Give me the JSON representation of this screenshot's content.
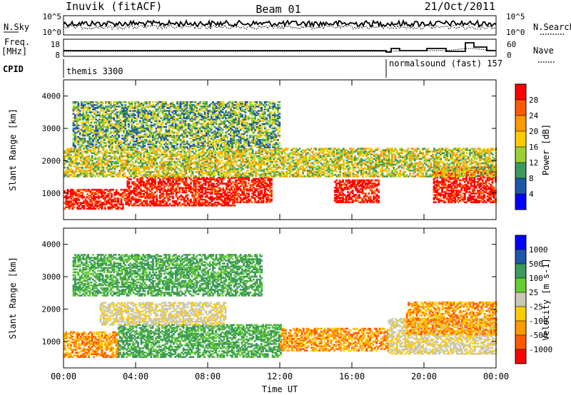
{
  "header": {
    "title": "Inuvik (fitACF)",
    "beam": "Beam 01",
    "date": "21/Oct/2011"
  },
  "top_panels": {
    "nsky_label": "N.Sky",
    "nsky_ticks": [
      "10^5",
      "10^0"
    ],
    "nsearch_label": "N.Search",
    "nsearch_ticks": [
      "10^5",
      "10^0"
    ],
    "freq_label": "Freq.",
    "freq_unit": "[MHz]",
    "freq_ticks": [
      "18",
      "8"
    ],
    "nave_label": "Nave",
    "nave_ticks": [
      "60",
      "0"
    ],
    "cpid_label": "CPID",
    "cpid_programs": [
      "themis 3300",
      "normalsound (fast) 157"
    ]
  },
  "chart_data": [
    {
      "type": "heatmap",
      "name": "power",
      "ylabel": "Slant Range [km]",
      "xlabel": "",
      "x_ticks": [
        "00:00",
        "04:00",
        "08:00",
        "12:00",
        "16:00",
        "20:00",
        "00:00"
      ],
      "y_ticks": [
        "1000",
        "2000",
        "3000",
        "4000"
      ],
      "ylim": [
        180,
        4500
      ],
      "colorbar": {
        "label": "Power [dB]",
        "ticks": [
          "28",
          "24",
          "20",
          "16",
          "12",
          "8",
          "4"
        ],
        "colors": [
          "#ff0000",
          "#ff5a00",
          "#ff9900",
          "#ffcc00",
          "#9ad033",
          "#3c9a5a",
          "#1f57a8",
          "#0000ff"
        ]
      },
      "bands": [
        {
          "from_hr": 0.0,
          "to_hr": 3.5,
          "low_km": 500,
          "high_km": 1100,
          "level": "high"
        },
        {
          "from_hr": 3.5,
          "to_hr": 9.5,
          "low_km": 600,
          "high_km": 1500,
          "level": "high"
        },
        {
          "from_hr": 9.5,
          "to_hr": 11.5,
          "low_km": 700,
          "high_km": 1500,
          "level": "high"
        },
        {
          "from_hr": 15.0,
          "to_hr": 17.5,
          "low_km": 700,
          "high_km": 1400,
          "level": "high"
        },
        {
          "from_hr": 20.5,
          "to_hr": 24.0,
          "low_km": 700,
          "high_km": 1800,
          "level": "high"
        },
        {
          "from_hr": 0.0,
          "to_hr": 24.0,
          "low_km": 1500,
          "high_km": 2400,
          "level": "mid"
        },
        {
          "from_hr": 0.5,
          "to_hr": 12.0,
          "low_km": 2400,
          "high_km": 3800,
          "level": "low"
        }
      ]
    },
    {
      "type": "heatmap",
      "name": "velocity",
      "ylabel": "Slant Range [km]",
      "xlabel": "Time UT",
      "x_ticks": [
        "00:00",
        "04:00",
        "08:00",
        "12:00",
        "16:00",
        "20:00",
        "00:00"
      ],
      "y_ticks": [
        "1000",
        "2000",
        "3000",
        "4000"
      ],
      "ylim": [
        180,
        4500
      ],
      "colorbar": {
        "label": "Velocity [m s-1]",
        "ticks": [
          "1000",
          "500",
          "100",
          "25",
          "-25",
          "-100",
          "-500",
          "-1000"
        ],
        "colors": [
          "#0000ff",
          "#1f57a8",
          "#3c9a5a",
          "#66cc33",
          "#c8c8b4",
          "#ffcc00",
          "#ff9900",
          "#ff5a00",
          "#ff0000"
        ]
      },
      "bands": [
        {
          "from_hr": 0.0,
          "to_hr": 3.0,
          "low_km": 500,
          "high_km": 1300,
          "level": "orange"
        },
        {
          "from_hr": 3.0,
          "to_hr": 12.0,
          "low_km": 500,
          "high_km": 1500,
          "level": "green"
        },
        {
          "from_hr": 2.0,
          "to_hr": 9.0,
          "low_km": 1500,
          "high_km": 2200,
          "level": "gray"
        },
        {
          "from_hr": 12.0,
          "to_hr": 18.0,
          "low_km": 700,
          "high_km": 1400,
          "level": "orange"
        },
        {
          "from_hr": 18.0,
          "to_hr": 24.0,
          "low_km": 600,
          "high_km": 1700,
          "level": "gray"
        },
        {
          "from_hr": 19.0,
          "to_hr": 24.0,
          "low_km": 1200,
          "high_km": 2200,
          "level": "orange"
        },
        {
          "from_hr": 0.5,
          "to_hr": 11.0,
          "low_km": 2400,
          "high_km": 3700,
          "level": "green"
        }
      ]
    }
  ]
}
